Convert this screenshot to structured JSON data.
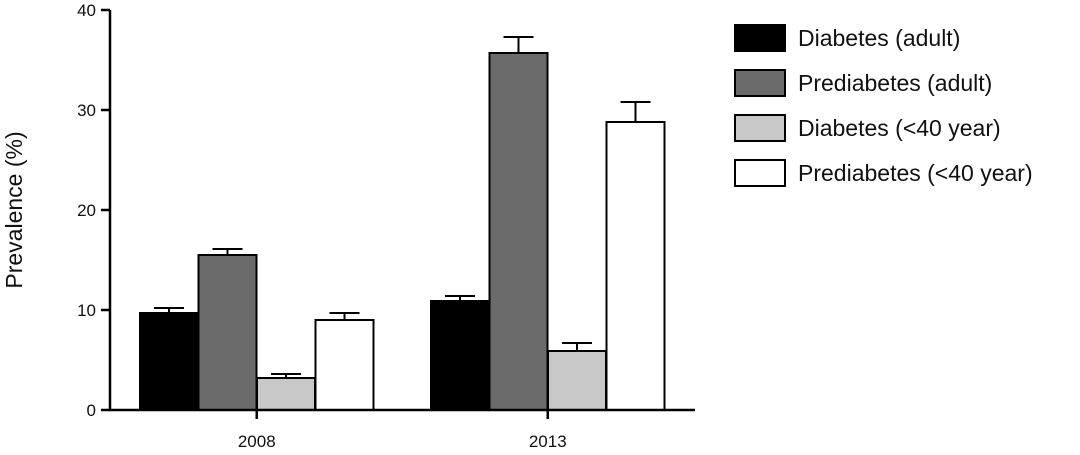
{
  "chart_data": {
    "type": "bar",
    "title": "",
    "xlabel": "",
    "ylabel": "Prevalence (%)",
    "ylim": [
      0,
      40
    ],
    "yticks": [
      "0",
      "10",
      "20",
      "30",
      "40"
    ],
    "categories": [
      "2008",
      "2013"
    ],
    "grid": false,
    "legend_position": "right",
    "error_bars": true,
    "series": [
      {
        "name": "Diabetes (adult)",
        "color": "#000000",
        "values": [
          9.7,
          10.9
        ],
        "errors": [
          0.5,
          0.5
        ]
      },
      {
        "name": "Prediabetes (adult)",
        "color": "#6b6b6b",
        "values": [
          15.5,
          35.7
        ],
        "errors": [
          0.6,
          1.6
        ]
      },
      {
        "name": "Diabetes (<40 year)",
        "color": "#c8c8c8",
        "values": [
          3.2,
          5.9
        ],
        "errors": [
          0.4,
          0.8
        ]
      },
      {
        "name": "Prediabetes (<40 year)",
        "color": "#ffffff",
        "values": [
          9.0,
          28.8
        ],
        "errors": [
          0.7,
          2.0
        ]
      }
    ]
  }
}
